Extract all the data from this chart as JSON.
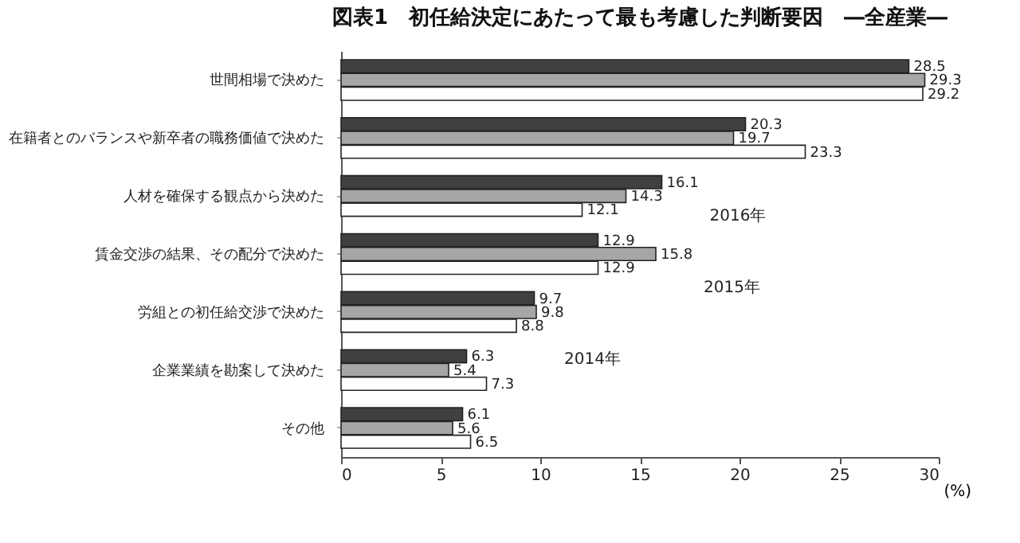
{
  "chart_data": {
    "type": "bar",
    "orientation": "horizontal",
    "title": "図表1　初任給決定にあたって最も考慮した判断要因　―全産業―",
    "xlabel": "(%)",
    "categories": [
      "世間相場で決めた",
      "在籍者とのバランスや新卒者の職務価値で決めた",
      "人材を確保する観点から決めた",
      "賃金交渉の結果、その配分で決めた",
      "労組との初任給交渉で決めた",
      "企業業績を勘案して決めた",
      "その他"
    ],
    "series": [
      {
        "name": "2016年",
        "color": "#404040",
        "values": [
          28.5,
          20.3,
          16.1,
          12.9,
          9.7,
          6.3,
          6.1
        ]
      },
      {
        "name": "2015年",
        "color": "#a6a6a6",
        "values": [
          29.3,
          19.7,
          14.3,
          15.8,
          9.8,
          5.4,
          5.6
        ]
      },
      {
        "name": "2014年",
        "color": "#ffffff",
        "values": [
          29.2,
          23.3,
          12.1,
          12.9,
          8.8,
          7.3,
          6.5
        ]
      }
    ],
    "xlim": [
      0,
      30
    ],
    "xticks": [
      0,
      5,
      10,
      15,
      20,
      25,
      30
    ],
    "data_labels": true,
    "grid": false,
    "legend": false
  }
}
